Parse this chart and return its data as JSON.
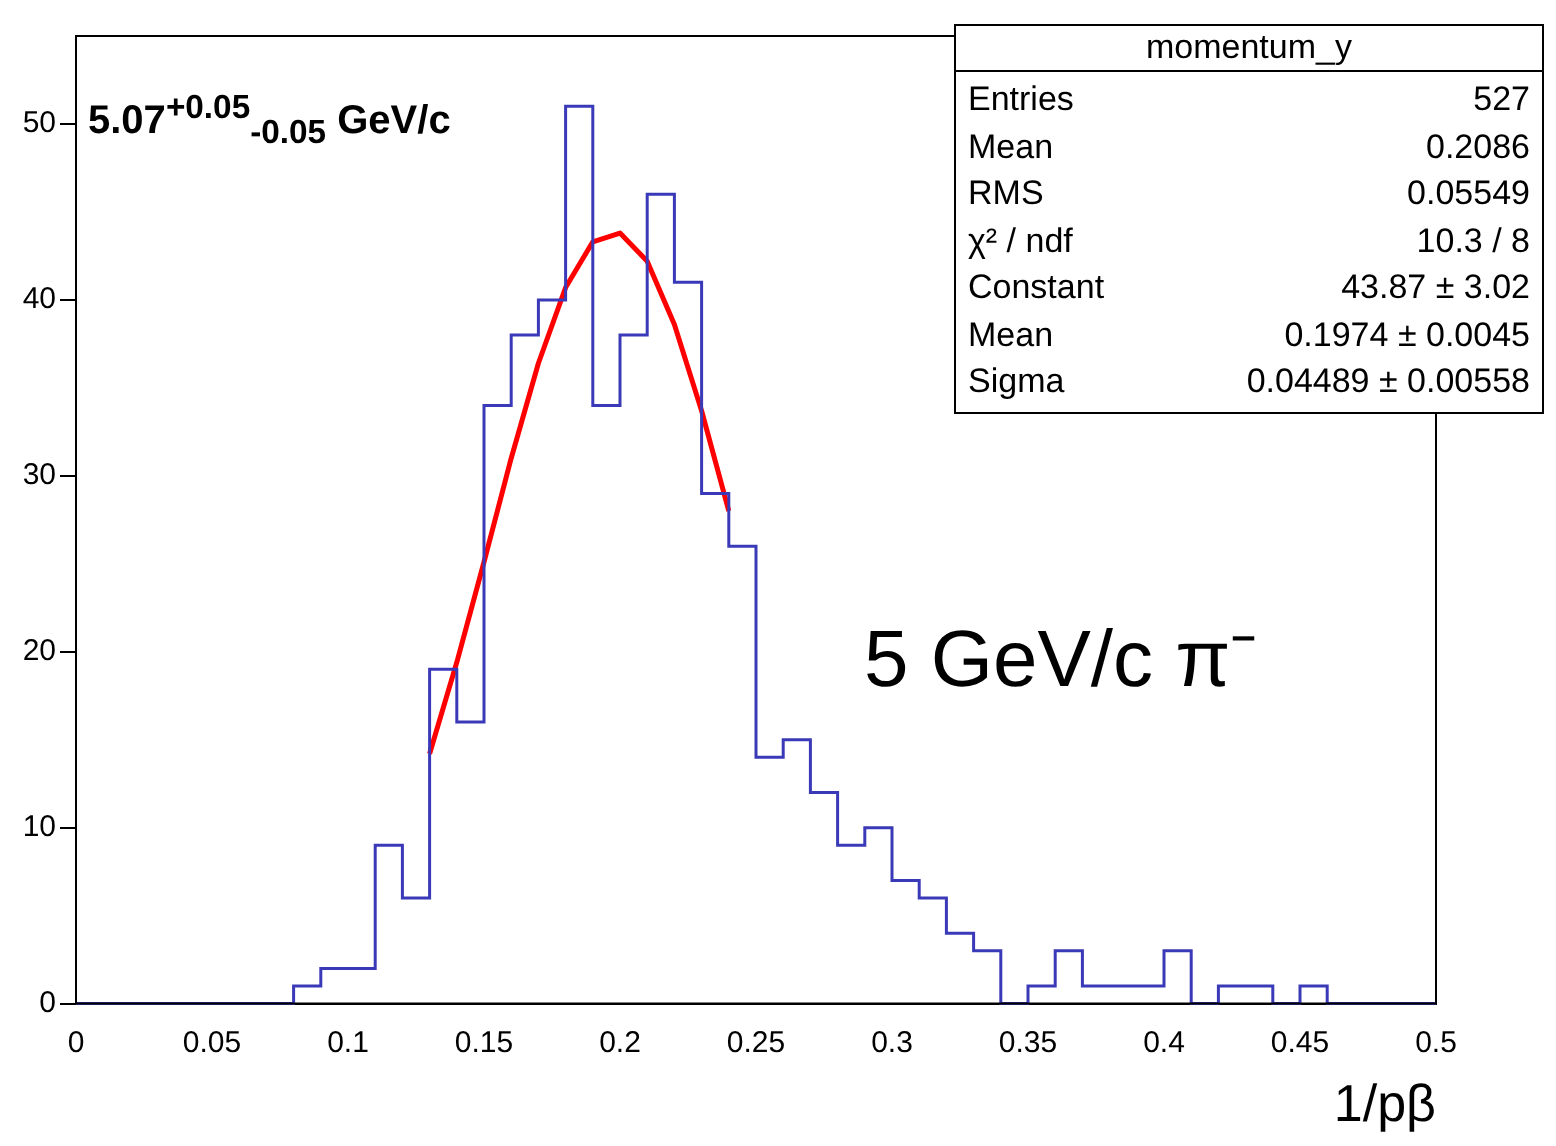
{
  "chart_data": {
    "type": "histogram",
    "xlabel": "1/pβ",
    "bins": [
      0,
      0.01,
      0.02,
      0.03,
      0.04,
      0.05,
      0.06,
      0.07,
      0.08,
      0.09,
      0.1,
      0.11,
      0.12,
      0.13,
      0.14,
      0.15,
      0.16,
      0.17,
      0.18,
      0.19,
      0.2,
      0.21,
      0.22,
      0.23,
      0.24,
      0.25,
      0.26,
      0.27,
      0.28,
      0.29,
      0.3,
      0.31,
      0.32,
      0.33,
      0.34,
      0.35,
      0.36,
      0.37,
      0.38,
      0.39,
      0.4,
      0.41,
      0.42,
      0.43,
      0.44,
      0.45,
      0.46,
      0.47,
      0.48,
      0.49,
      0.5
    ],
    "values": [
      0,
      0,
      0,
      0,
      0,
      0,
      0,
      0,
      1,
      2,
      2,
      9,
      6,
      19,
      16,
      34,
      38,
      40,
      51,
      34,
      38,
      46,
      41,
      29,
      26,
      14,
      15,
      12,
      9,
      10,
      7,
      6,
      4,
      3,
      0,
      1,
      3,
      1,
      1,
      1,
      3,
      0,
      1,
      1,
      0,
      1,
      0,
      0,
      0,
      0
    ],
    "color": "#3a3ab8",
    "series": [
      {
        "type": "line",
        "color": "#ff0000",
        "x": [
          0.13,
          0.14,
          0.15,
          0.16,
          0.17,
          0.18,
          0.19,
          0.2,
          0.21,
          0.22,
          0.23,
          0.24
        ],
        "values": [
          14.2,
          19.4,
          25.1,
          31.0,
          36.4,
          40.7,
          43.3,
          43.8,
          42.2,
          38.6,
          33.7,
          28.0
        ]
      }
    ],
    "xlim": [
      0,
      0.5
    ],
    "xticks": [
      0,
      0.05,
      0.1,
      0.15,
      0.2,
      0.25,
      0.3,
      0.35,
      0.4,
      0.45,
      0.5
    ],
    "ylim": [
      0,
      55
    ],
    "yticks": [
      0,
      10,
      20,
      30,
      40,
      50
    ],
    "grid": false,
    "legend": false,
    "marker": "none",
    "line_style": "solid",
    "annotations": [
      "5.07$^{+0.05}$$_{-0.05}$ GeV/c",
      "5 GeV/c π⁻",
      "momentum_y",
      "Entries",
      "527",
      "Mean",
      "0.2086",
      "RMS",
      "0.05549",
      "χ² / ndf",
      "10.3 / 8",
      "Constant",
      "43.87 ± 3.02",
      "Mean",
      "0.1974 ± 0.0045",
      "Sigma",
      "0.04489 ± 0.00558"
    ]
  }
}
